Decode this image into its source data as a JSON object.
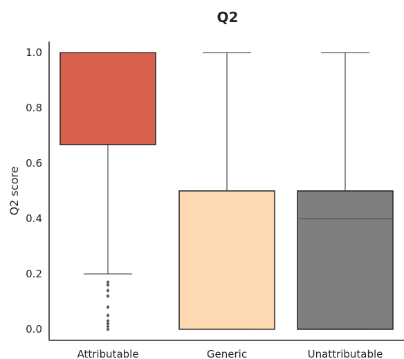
{
  "chart_data": {
    "type": "box",
    "title": "Q2",
    "xlabel": "",
    "ylabel": "Q2 score",
    "ylim": [
      -0.04,
      1.04
    ],
    "yticks": [
      "0.0",
      "0.2",
      "0.4",
      "0.6",
      "0.8",
      "1.0"
    ],
    "grid": false,
    "categories": [
      "Attributable",
      "Generic",
      "Unattributable"
    ],
    "colors": [
      "#d9604c",
      "#fdd8b0",
      "#7f7f7f"
    ],
    "boxes": [
      {
        "category": "Attributable",
        "whisker_low": 0.2,
        "q1": 0.667,
        "median": 1.0,
        "q3": 1.0,
        "whisker_high": 1.0,
        "outliers": [
          0.0,
          0.01,
          0.02,
          0.03,
          0.05,
          0.08,
          0.12,
          0.14,
          0.16,
          0.17
        ]
      },
      {
        "category": "Generic",
        "whisker_low": 0.0,
        "q1": 0.0,
        "median": 0.0,
        "q3": 0.5,
        "whisker_high": 1.0,
        "outliers": []
      },
      {
        "category": "Unattributable",
        "whisker_low": 0.0,
        "q1": 0.0,
        "median": 0.4,
        "q3": 0.5,
        "whisker_high": 1.0,
        "outliers": []
      }
    ]
  }
}
